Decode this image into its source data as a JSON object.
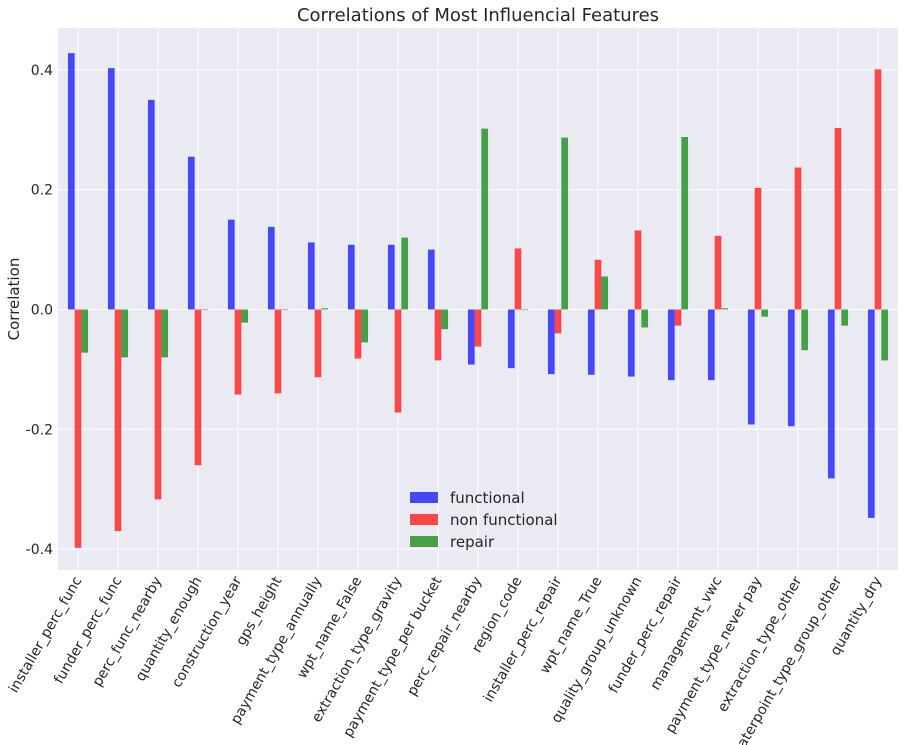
{
  "chart_data": {
    "type": "bar",
    "title": "Correlations of Most Influencial Features",
    "xlabel": "",
    "ylabel": "Correlation",
    "ylim": [
      -0.435,
      0.47
    ],
    "yticks": [
      -0.4,
      -0.2,
      0.0,
      0.2,
      0.4
    ],
    "ytick_labels": [
      "-0.4",
      "-0.2",
      "0.0",
      "0.2",
      "0.4"
    ],
    "grid": true,
    "legend_position": "bottom-center",
    "categories": [
      "installer_perc_func",
      "funder_perc_func",
      "perc_func_nearby",
      "quantity_enough",
      "construction_year",
      "gps_height",
      "payment_type_annually",
      "wpt_name_False",
      "extraction_type_gravity",
      "payment_type_per bucket",
      "perc_repair_nearby",
      "region_code",
      "installer_perc_repair",
      "wpt_name_True",
      "quality_group_unknown",
      "funder_perc_repair",
      "management_vwc",
      "payment_type_never pay",
      "extraction_type_other",
      "waterpoint_type_group_other",
      "quantity_dry"
    ],
    "series": [
      {
        "name": "functional",
        "color": "#0000ff",
        "values": [
          0.428,
          0.403,
          0.35,
          0.255,
          0.15,
          0.138,
          0.112,
          0.108,
          0.108,
          0.1,
          -0.092,
          -0.098,
          -0.108,
          -0.109,
          -0.112,
          -0.118,
          -0.118,
          -0.192,
          -0.195,
          -0.282,
          -0.348
        ]
      },
      {
        "name": "non functional",
        "color": "#ff0000",
        "values": [
          -0.398,
          -0.37,
          -0.317,
          -0.26,
          -0.142,
          -0.14,
          -0.113,
          -0.082,
          -0.172,
          -0.085,
          -0.062,
          0.102,
          -0.04,
          0.083,
          0.132,
          -0.027,
          0.123,
          0.203,
          0.237,
          0.303,
          0.401
        ]
      },
      {
        "name": "repair",
        "color": "#008000",
        "values": [
          -0.072,
          -0.08,
          -0.08,
          0.0,
          -0.022,
          0.0,
          0.002,
          -0.055,
          0.12,
          -0.033,
          0.302,
          0.0,
          0.287,
          0.055,
          -0.03,
          0.288,
          0.002,
          -0.012,
          -0.068,
          -0.027,
          -0.085
        ]
      }
    ]
  }
}
